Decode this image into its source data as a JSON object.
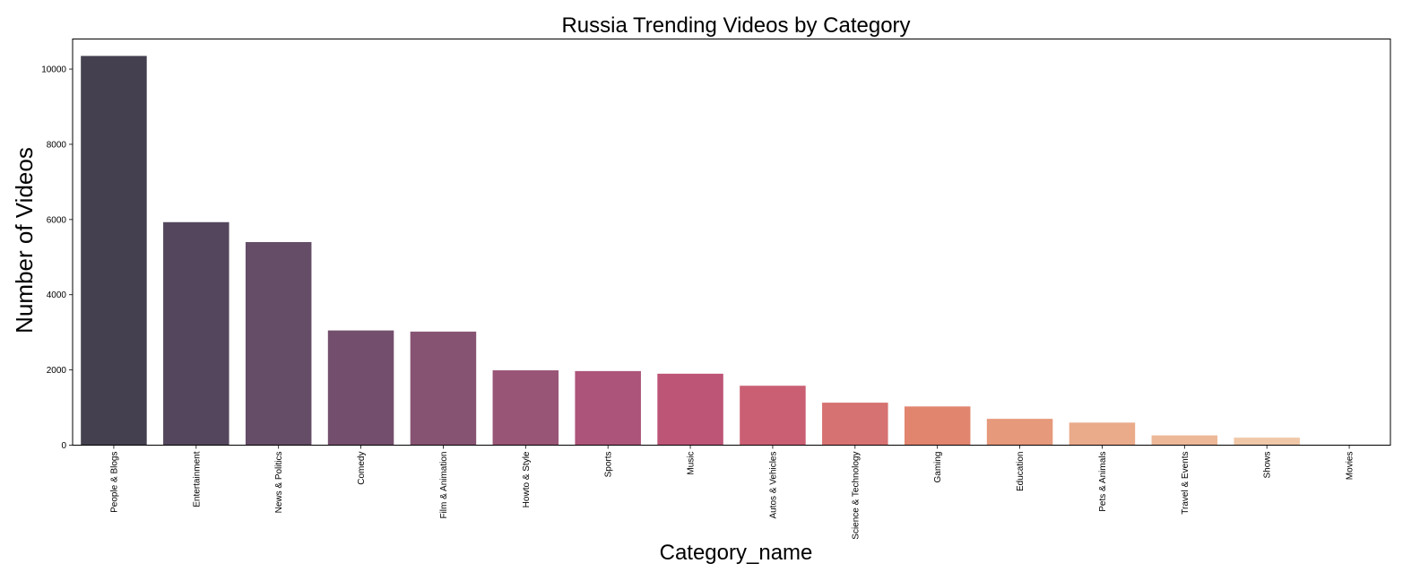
{
  "chart_data": {
    "type": "bar",
    "title": "Russia Trending Videos by Category",
    "xlabel": "Category_name",
    "ylabel": "Number of Videos",
    "ylim": [
      0,
      10800
    ],
    "yticks": [
      0,
      2000,
      4000,
      6000,
      8000,
      10000
    ],
    "grid": false,
    "legend": "none",
    "categories": [
      "People & Blogs",
      "Entertainment",
      "News & Politics",
      "Comedy",
      "Film & Animation",
      "Howto & Style",
      "Sports",
      "Music",
      "Autos & Vehicles",
      "Science & Technology",
      "Gaming",
      "Education",
      "Pets & Animals",
      "Travel & Events",
      "Shows",
      "Movies"
    ],
    "values": [
      10350,
      5930,
      5400,
      3050,
      3020,
      1990,
      1970,
      1900,
      1580,
      1130,
      1030,
      700,
      600,
      260,
      200,
      5
    ],
    "colors": [
      "#45404f",
      "#54475d",
      "#654c67",
      "#744f6d",
      "#875372",
      "#995576",
      "#ac5479",
      "#bd5577",
      "#ca5f73",
      "#d67271",
      "#e1856f",
      "#e6997b",
      "#eaab8a",
      "#edb897",
      "#f0c8a8",
      "#f3d7bc"
    ]
  }
}
